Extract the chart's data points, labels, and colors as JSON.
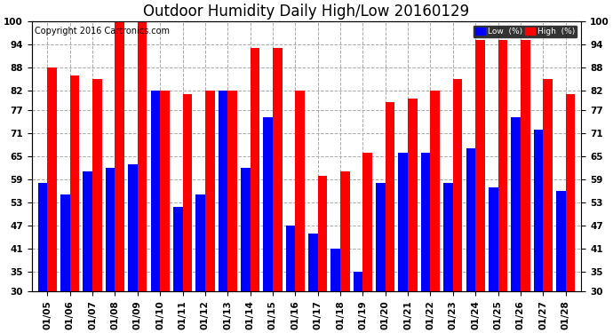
{
  "title": "Outdoor Humidity Daily High/Low 20160129",
  "copyright_text": "Copyright 2016 Cartronics.com",
  "categories": [
    "01/05",
    "01/06",
    "01/07",
    "01/08",
    "01/09",
    "01/10",
    "01/11",
    "01/12",
    "01/13",
    "01/14",
    "01/15",
    "01/16",
    "01/17",
    "01/18",
    "01/19",
    "01/20",
    "01/21",
    "01/22",
    "01/23",
    "01/24",
    "01/25",
    "01/26",
    "01/27",
    "01/28"
  ],
  "high_values": [
    88,
    86,
    85,
    100,
    100,
    82,
    81,
    82,
    82,
    93,
    93,
    82,
    60,
    61,
    66,
    79,
    80,
    82,
    85,
    95,
    95,
    95,
    85,
    81
  ],
  "low_values": [
    58,
    55,
    61,
    62,
    63,
    82,
    52,
    55,
    82,
    62,
    75,
    47,
    45,
    41,
    35,
    58,
    66,
    66,
    58,
    67,
    57,
    75,
    72,
    56
  ],
  "high_color": "#ff0000",
  "low_color": "#0000ff",
  "bg_color": "#ffffff",
  "plot_bg_color": "#ffffff",
  "grid_color": "#aaaaaa",
  "ylim": [
    30,
    100
  ],
  "yticks": [
    30,
    35,
    41,
    47,
    53,
    59,
    65,
    71,
    77,
    82,
    88,
    94,
    100
  ],
  "legend_low_label": "Low  (%)",
  "legend_high_label": "High  (%)",
  "title_fontsize": 12,
  "tick_fontsize": 7.5,
  "copyright_fontsize": 7,
  "bar_width": 0.42,
  "fig_width": 6.9,
  "fig_height": 3.75
}
